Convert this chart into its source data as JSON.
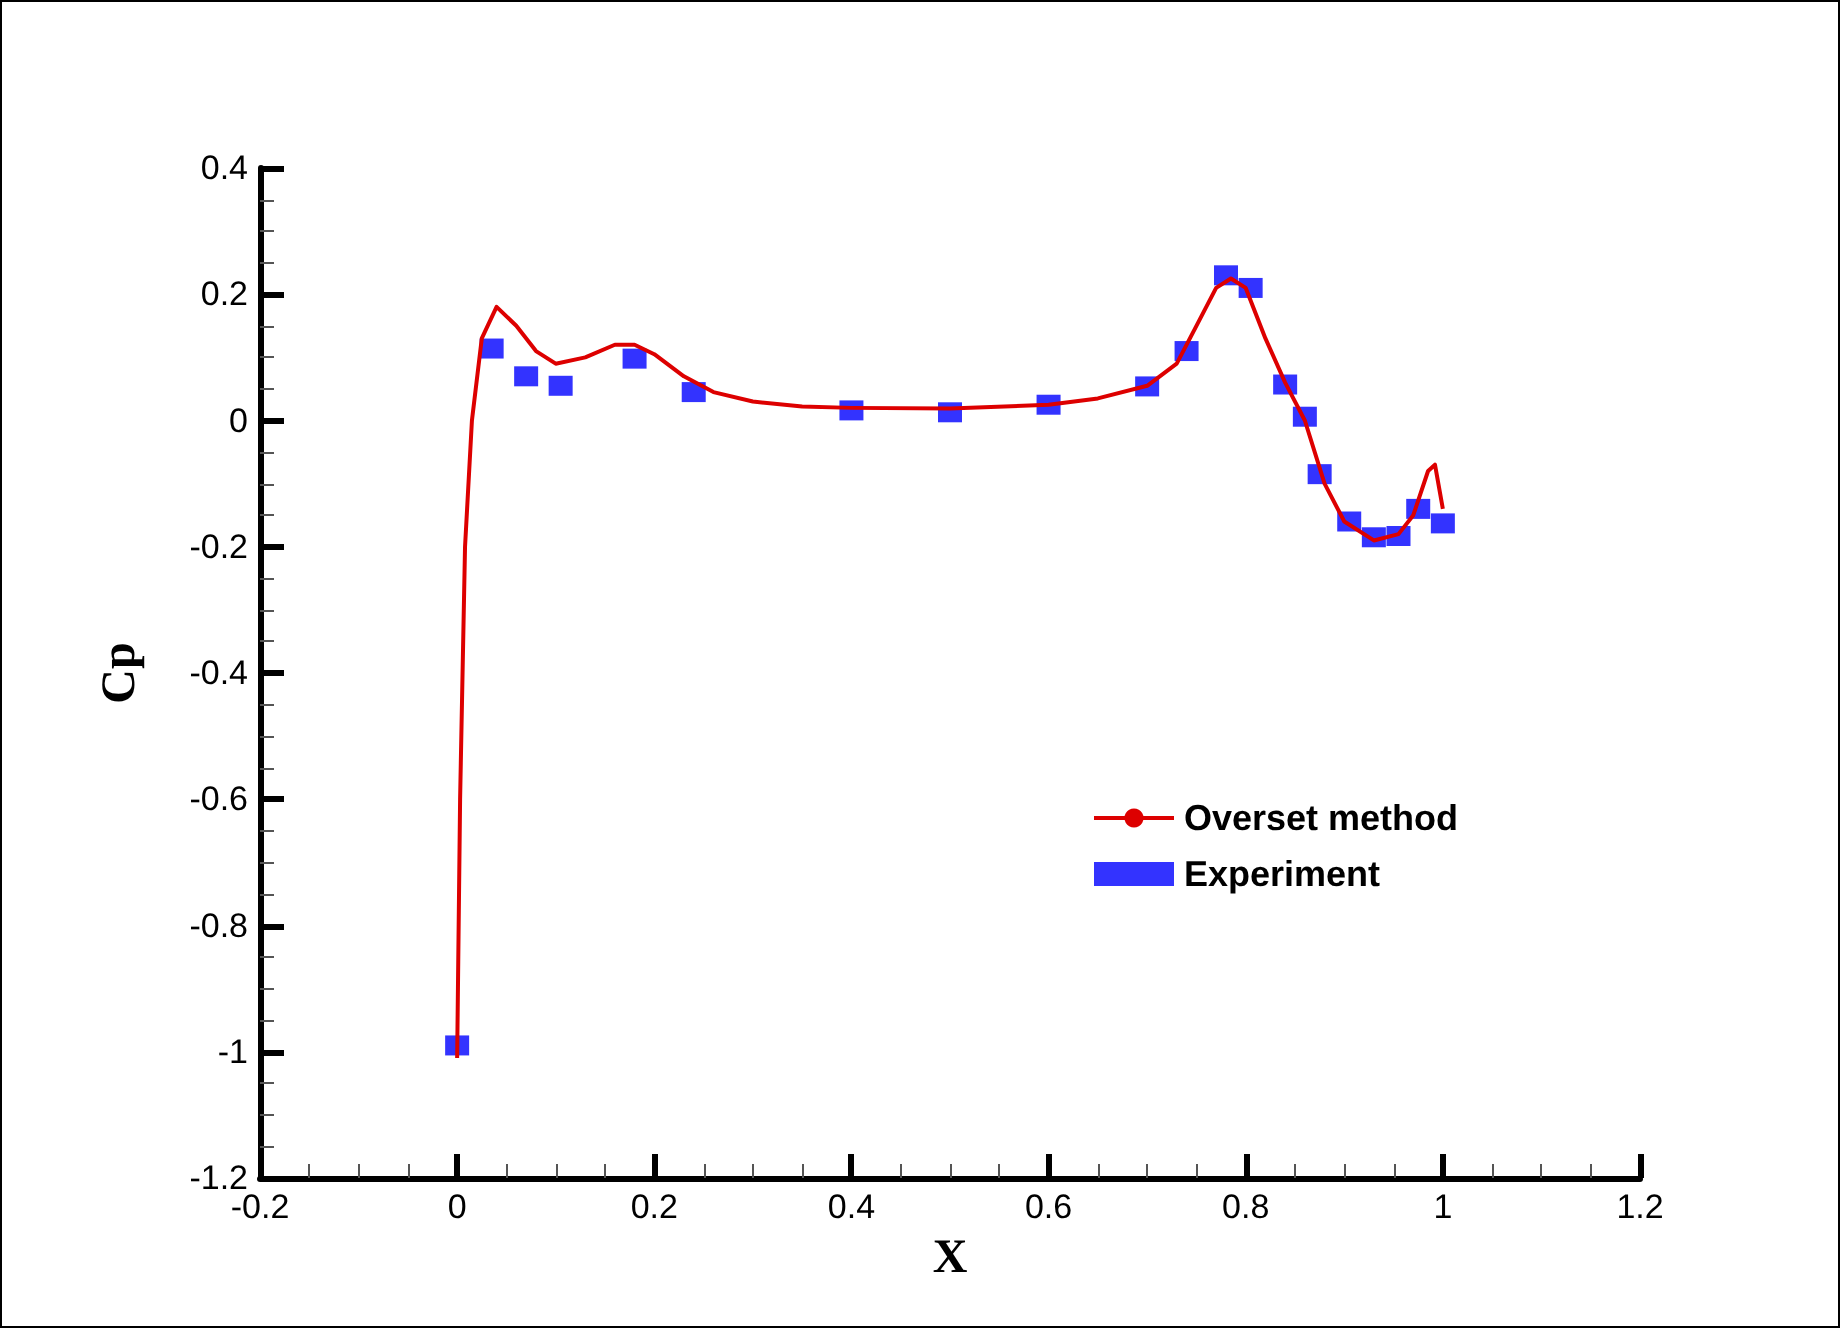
{
  "chart_data": {
    "type": "line",
    "xlabel": "X",
    "ylabel": "Cp",
    "xlim": [
      -0.2,
      1.2
    ],
    "xticks": [
      -0.2,
      0,
      0.2,
      0.4,
      0.6,
      0.8,
      1,
      1.2
    ],
    "ylim": [
      -1.2,
      0.4
    ],
    "yticks": [
      -1.2,
      -1,
      -0.8,
      -0.6,
      -0.4,
      -0.2,
      0,
      0.2,
      0.4
    ],
    "grid": false,
    "legend": "right",
    "series": [
      {
        "name": "Overset method",
        "type": "line",
        "color": "#dd0000",
        "marker": "none",
        "line_style": "solid",
        "x": [
          0,
          0.003,
          0.008,
          0.015,
          0.025,
          0.04,
          0.06,
          0.08,
          0.1,
          0.13,
          0.16,
          0.18,
          0.2,
          0.23,
          0.26,
          0.3,
          0.35,
          0.4,
          0.5,
          0.6,
          0.65,
          0.7,
          0.73,
          0.75,
          0.77,
          0.785,
          0.8,
          0.82,
          0.84,
          0.86,
          0.88,
          0.9,
          0.93,
          0.955,
          0.97,
          0.985,
          0.992,
          1.0
        ],
        "values": [
          -1.01,
          -0.6,
          -0.2,
          0.0,
          0.13,
          0.18,
          0.15,
          0.11,
          0.09,
          0.1,
          0.12,
          0.12,
          0.105,
          0.07,
          0.045,
          0.03,
          0.022,
          0.02,
          0.019,
          0.025,
          0.035,
          0.055,
          0.09,
          0.15,
          0.21,
          0.225,
          0.21,
          0.13,
          0.06,
          0.0,
          -0.1,
          -0.16,
          -0.19,
          -0.18,
          -0.15,
          -0.08,
          -0.07,
          -0.14
        ]
      },
      {
        "name": "Experiment",
        "type": "scatter",
        "color": "#3333ff",
        "marker": "square",
        "x": [
          0,
          0.035,
          0.07,
          0.105,
          0.18,
          0.24,
          0.4,
          0.5,
          0.6,
          0.7,
          0.74,
          0.78,
          0.805,
          0.84,
          0.86,
          0.875,
          0.905,
          0.93,
          0.955,
          0.975,
          1.0
        ],
        "values": [
          -0.99,
          0.114,
          0.07,
          0.055,
          0.098,
          0.045,
          0.016,
          0.013,
          0.025,
          0.054,
          0.11,
          0.23,
          0.21,
          0.057,
          0.006,
          -0.085,
          -0.16,
          -0.185,
          -0.183,
          -0.14,
          -0.163
        ]
      }
    ]
  }
}
